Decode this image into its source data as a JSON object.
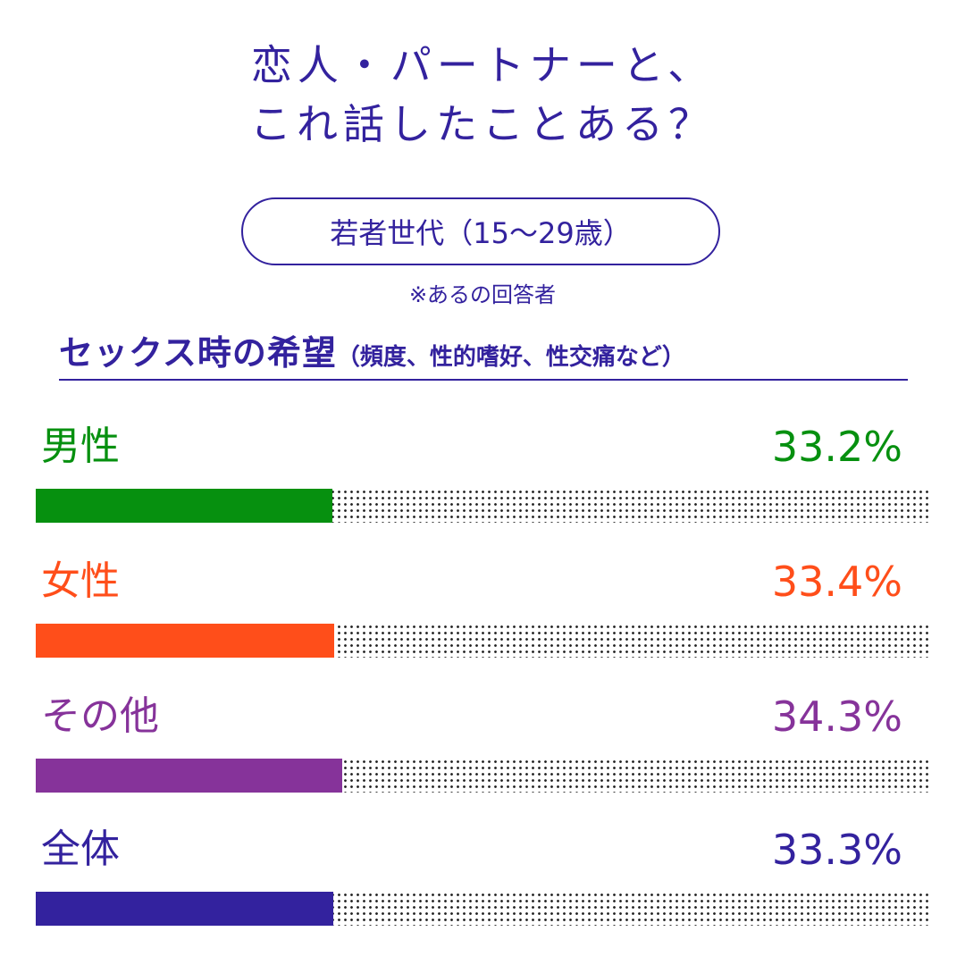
{
  "title": {
    "line1": "恋人・パートナーと、",
    "line2": "これ話したことある？"
  },
  "age_group": "若者世代（15〜29歳）",
  "note": "※あるの回答者",
  "heading": {
    "main": "セックス時の希望",
    "sub": "（頻度、性的嗜好、性交痛など）"
  },
  "colors": {
    "accent": "#33229e",
    "male": "#06900f",
    "female": "#ff4e1a",
    "other": "#86339a",
    "all": "#33229e"
  },
  "chart_data": {
    "type": "bar",
    "orientation": "horizontal",
    "title": "セックス時の希望（頻度、性的嗜好、性交痛など）",
    "categories": [
      "男性",
      "女性",
      "その他",
      "全体"
    ],
    "values": [
      33.2,
      33.4,
      34.3,
      33.3
    ],
    "value_labels": [
      "33.2%",
      "33.4%",
      "34.3%",
      "33.3%"
    ],
    "colors": [
      "#06900f",
      "#ff4e1a",
      "#86339a",
      "#33229e"
    ],
    "xlim": [
      0,
      100
    ],
    "unit": "%"
  }
}
